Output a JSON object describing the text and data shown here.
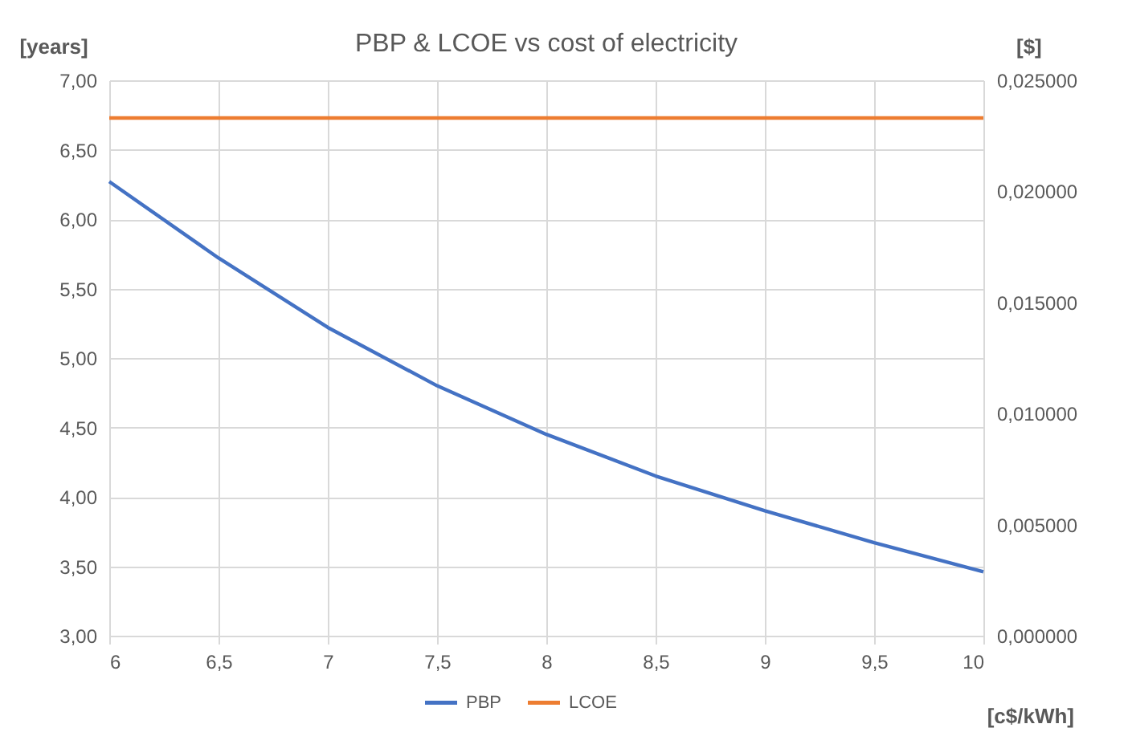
{
  "chart_data": {
    "type": "line",
    "title": "PBP & LCOE vs cost of electricity",
    "xlabel": "[c$/kWh]",
    "ylabel": "[years]",
    "y2label": "[$]",
    "x": [
      6,
      6.5,
      7,
      7.5,
      8,
      8.5,
      9,
      9.5,
      10
    ],
    "series": [
      {
        "name": "PBP",
        "color": "#4472c4",
        "values": [
          6.27,
          5.72,
          5.22,
          4.8,
          4.45,
          4.15,
          3.9,
          3.67,
          3.46
        ]
      },
      {
        "name": "LCOE",
        "color": "#ed7d31",
        "axis": "y2",
        "values": [
          0.0233,
          0.0233,
          0.0233,
          0.0233,
          0.0233,
          0.0233,
          0.0233,
          0.0233,
          0.0233
        ]
      }
    ],
    "xlim": [
      6,
      10
    ],
    "xticks": [
      6,
      {
        "value": 6.5,
        "label": "6,5"
      },
      7,
      {
        "value": 7.5,
        "label": "7,5"
      },
      8,
      {
        "value": 8.5,
        "label": "8,5"
      },
      9,
      {
        "value": 9.5,
        "label": "9,5"
      },
      10
    ],
    "ylim": [
      3,
      7
    ],
    "yticks": [
      {
        "value": 3,
        "label": "3,00"
      },
      {
        "value": 3.5,
        "label": "3,50"
      },
      {
        "value": 4,
        "label": "4,00"
      },
      {
        "value": 4.5,
        "label": "4,50"
      },
      {
        "value": 5,
        "label": "5,00"
      },
      {
        "value": 5.5,
        "label": "5,50"
      },
      {
        "value": 6,
        "label": "6,00"
      },
      {
        "value": 6.5,
        "label": "6,50"
      },
      {
        "value": 7,
        "label": "7,00"
      }
    ],
    "y2lim": [
      0,
      0.025
    ],
    "y2ticks": [
      {
        "value": 0,
        "label": "0,000000"
      },
      {
        "value": 0.005,
        "label": "0,005000"
      },
      {
        "value": 0.01,
        "label": "0,010000"
      },
      {
        "value": 0.015,
        "label": "0,015000"
      },
      {
        "value": 0.02,
        "label": "0,020000"
      },
      {
        "value": 0.025,
        "label": "0,025000"
      }
    ],
    "grid": true,
    "legend": "bottom",
    "marker": "none",
    "line_style": "solid"
  }
}
